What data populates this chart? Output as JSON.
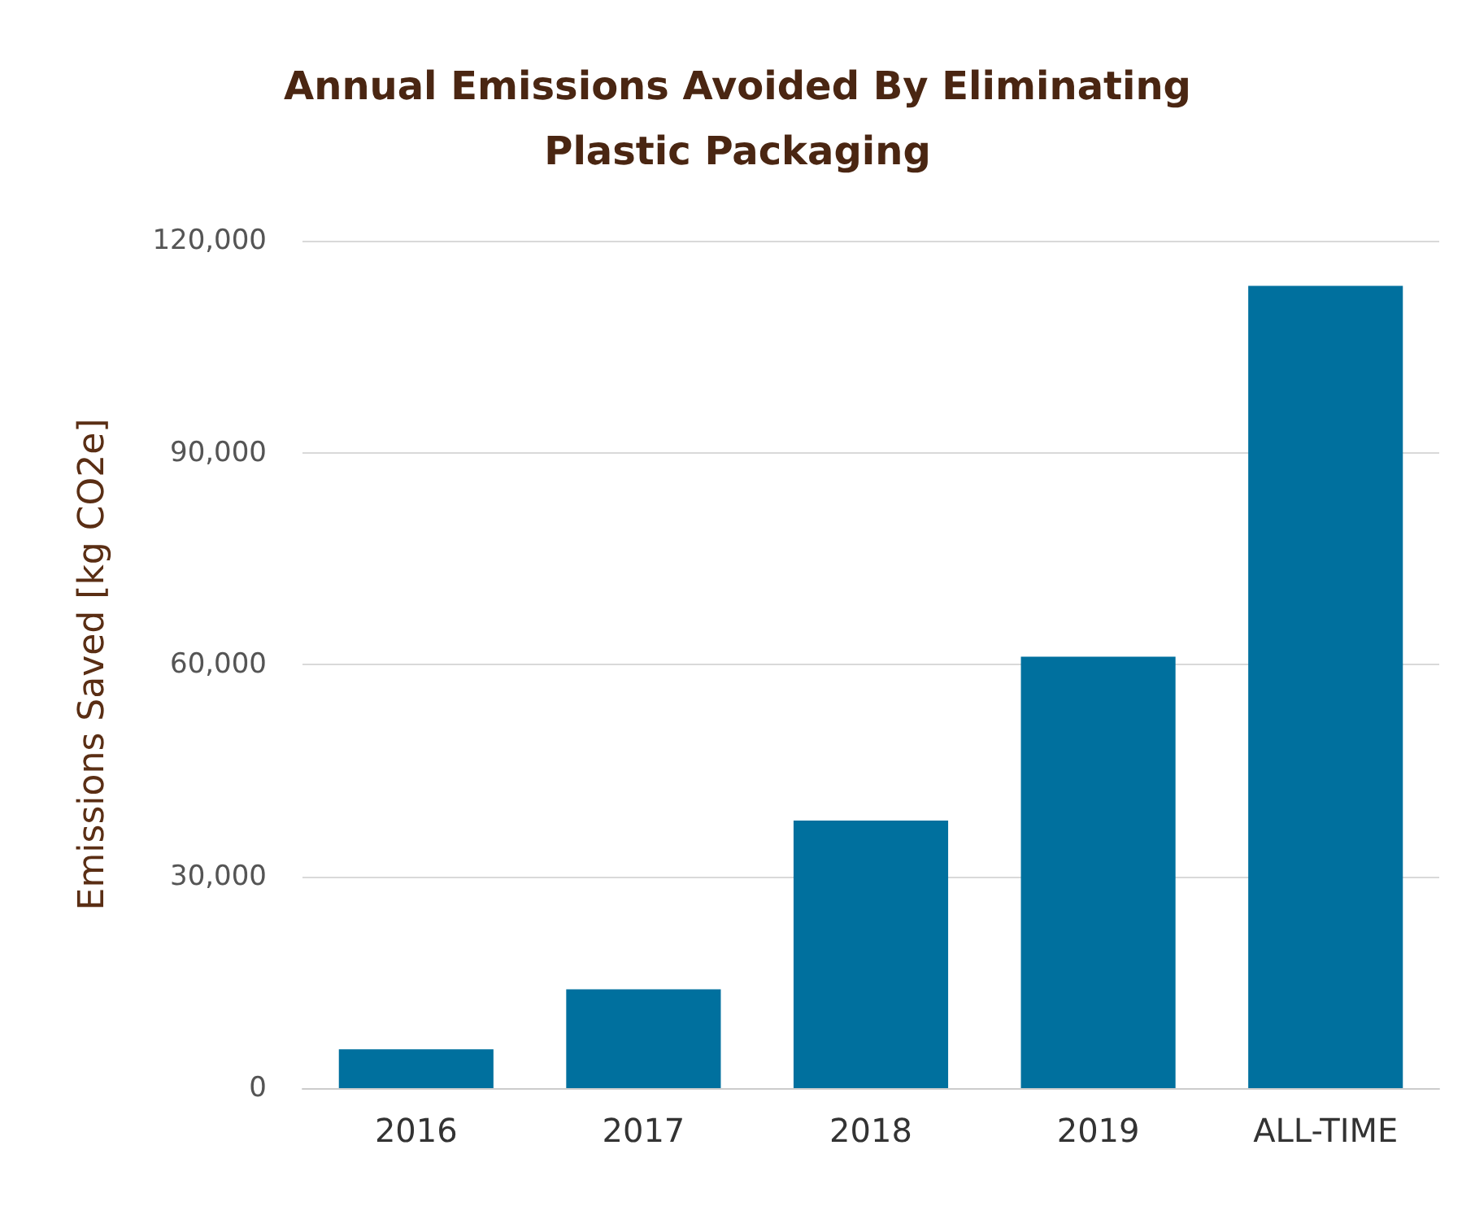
{
  "chart_data": {
    "type": "bar",
    "title": "Annual Emissions Avoided By Eliminating\nPlastic Packaging",
    "ylabel": "Emissions Saved [kg CO2e]",
    "categories": [
      "2016",
      "2017",
      "2018",
      "2019",
      "ALL-TIME"
    ],
    "values": [
      5500,
      14000,
      37900,
      61100,
      113600
    ],
    "color": "#00709e",
    "ylim": [
      0,
      120000
    ],
    "yticks": [
      0,
      {
        "value": 30000,
        "label": "30,000"
      },
      {
        "value": 60000,
        "label": "60,000"
      },
      {
        "value": 90000,
        "label": "90,000"
      },
      {
        "value": 120000,
        "label": "120,000"
      }
    ],
    "grid": "y"
  }
}
